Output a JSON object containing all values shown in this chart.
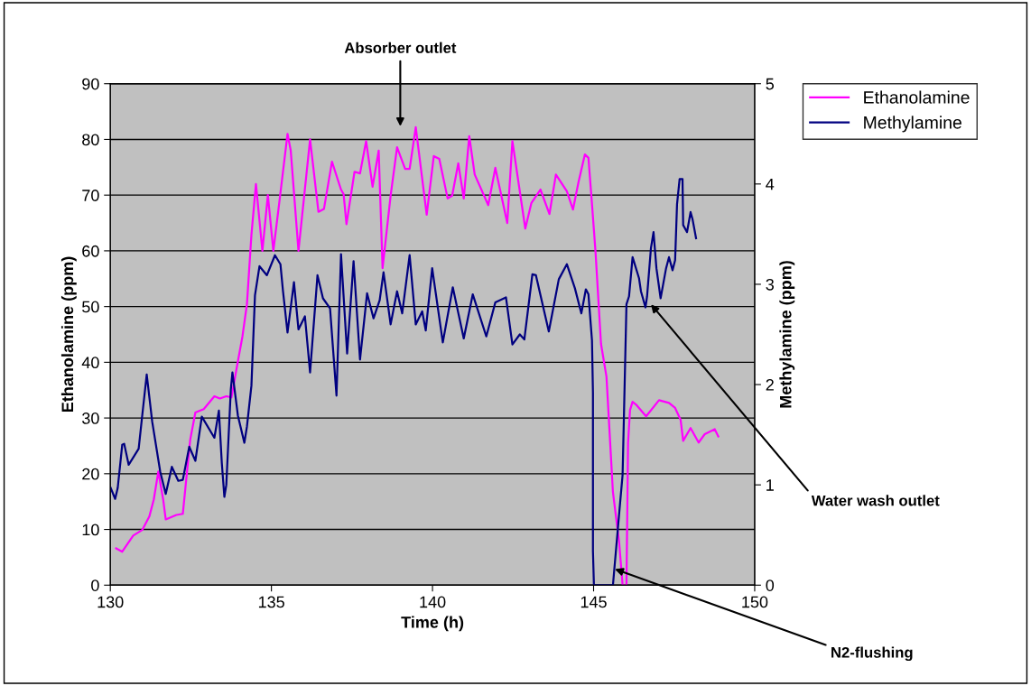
{
  "chart_data": {
    "type": "line",
    "xlabel": "Time (h)",
    "ylabel": "Ethanolamine (ppm)",
    "y2label": "Methylamine (ppm)",
    "xlim": [
      130,
      150
    ],
    "xticks": [
      130,
      135,
      140,
      145,
      150
    ],
    "ylim": [
      0,
      90
    ],
    "yticks": [
      0,
      10,
      20,
      30,
      40,
      50,
      60,
      70,
      80,
      90
    ],
    "y2lim": [
      0,
      5
    ],
    "y2ticks": [
      0,
      1,
      2,
      3,
      4,
      5
    ],
    "grid": "y",
    "legend": "top right",
    "marker": "none",
    "line_style": "solid",
    "annotations": [
      "Absorber outlet",
      {
        "text": "Water wash outlet",
        "x": 146.78,
        "y": 50.4
      },
      {
        "text": "N2-flushing",
        "x": 145.66,
        "y": 2.9
      }
    ],
    "series": [
      {
        "name": "Ethanolamine",
        "color": "#ff00ff",
        "x": [
          130.18,
          130.37,
          130.71,
          130.99,
          131.21,
          131.35,
          131.49,
          131.64,
          131.72,
          132.05,
          132.25,
          132.48,
          132.64,
          132.9,
          133.23,
          133.4,
          133.6,
          133.76,
          133.96,
          134.1,
          134.24,
          134.38,
          134.52,
          134.72,
          134.89,
          135.06,
          135.23,
          135.5,
          135.6,
          135.84,
          136.2,
          136.46,
          136.63,
          136.88,
          137.16,
          137.24,
          137.33,
          137.58,
          137.75,
          137.94,
          138.14,
          138.33,
          138.45,
          138.7,
          138.9,
          139.15,
          139.29,
          139.48,
          139.82,
          140.04,
          140.21,
          140.47,
          140.61,
          140.8,
          140.97,
          141.14,
          141.31,
          141.73,
          141.95,
          142.32,
          142.48,
          142.88,
          143.07,
          143.35,
          143.63,
          143.83,
          144.17,
          144.36,
          144.53,
          144.73,
          144.84,
          144.95,
          145.06,
          145.23,
          145.4,
          145.6,
          145.79,
          145.9,
          146.02,
          146.07,
          146.13,
          146.21,
          146.32,
          146.63,
          147.03,
          147.34,
          147.53,
          147.7,
          147.78,
          148.01,
          148.26,
          148.45,
          148.76,
          148.87
        ],
        "values": [
          6.6,
          6.0,
          8.9,
          9.9,
          12.3,
          15.4,
          20.4,
          15.4,
          11.8,
          12.6,
          12.8,
          26.1,
          31.0,
          31.6,
          33.9,
          33.5,
          33.9,
          33.7,
          40.2,
          44.6,
          50.4,
          62.9,
          72,
          60,
          70,
          60,
          68,
          81,
          78,
          60,
          80,
          67,
          67.5,
          76,
          71,
          70.2,
          64.8,
          74.2,
          73.9,
          79.7,
          71.5,
          78.0,
          56.9,
          69.9,
          78.6,
          74.7,
          74.7,
          82.2,
          66.5,
          77.0,
          76.5,
          69.4,
          69.9,
          75.7,
          69.4,
          80.6,
          73.7,
          68.2,
          74.9,
          65.0,
          79.7,
          64.0,
          68.6,
          71.0,
          66.6,
          73.7,
          70.7,
          67.4,
          72.3,
          77.3,
          76.7,
          68.4,
          59.8,
          43.3,
          37.4,
          16.7,
          7.9,
          0,
          0,
          25.6,
          31.4,
          32.9,
          32.4,
          30.3,
          33.2,
          32.7,
          31.8,
          29.7,
          25.9,
          28.2,
          25.6,
          27.1,
          28.0,
          26.7
        ]
      },
      {
        "name": "Methylamine",
        "color": "#000080",
        "axis": "y2",
        "x": [
          130.01,
          130.15,
          130.23,
          130.37,
          130.43,
          130.57,
          130.88,
          130.99,
          131.13,
          131.3,
          131.55,
          131.72,
          131.91,
          132.11,
          132.25,
          132.45,
          132.64,
          132.84,
          133.23,
          133.37,
          133.46,
          133.54,
          133.6,
          133.74,
          133.79,
          133.96,
          134.16,
          134.24,
          134.38,
          134.49,
          134.63,
          134.86,
          135.11,
          135.28,
          135.36,
          135.5,
          135.7,
          135.84,
          136.04,
          136.2,
          136.43,
          136.6,
          136.82,
          137.02,
          137.16,
          137.35,
          137.55,
          137.75,
          137.97,
          138.17,
          138.36,
          138.48,
          138.7,
          138.9,
          139.06,
          139.29,
          139.48,
          139.68,
          139.79,
          139.99,
          140.32,
          140.63,
          140.97,
          141.25,
          141.67,
          141.95,
          142.28,
          142.48,
          142.71,
          142.85,
          143.1,
          143.21,
          143.61,
          143.92,
          144.17,
          144.42,
          144.62,
          144.76,
          144.84,
          144.95,
          144.98,
          144.98,
          145.01,
          145.6,
          145.79,
          145.9,
          146.02,
          146.1,
          146.21,
          146.41,
          146.47,
          146.61,
          146.66,
          146.78,
          146.86,
          146.95,
          147.08,
          147.25,
          147.34,
          147.45,
          147.53,
          147.59,
          147.67,
          147.76,
          147.78,
          147.9,
          148.01,
          148.07,
          148.18
        ],
        "values": [
          0.97,
          0.86,
          0.97,
          1.4,
          1.41,
          1.2,
          1.36,
          1.69,
          2.1,
          1.63,
          1.13,
          0.91,
          1.18,
          1.04,
          1.05,
          1.38,
          1.24,
          1.68,
          1.47,
          1.74,
          1.22,
          0.88,
          1.0,
          1.95,
          2.12,
          1.69,
          1.42,
          1.58,
          1.99,
          2.89,
          3.18,
          3.09,
          3.29,
          3.2,
          2.93,
          2.52,
          3.02,
          2.55,
          2.68,
          2.12,
          3.09,
          2.86,
          2.76,
          1.89,
          3.3,
          2.31,
          3.23,
          2.25,
          2.91,
          2.66,
          2.84,
          3.12,
          2.6,
          2.93,
          2.71,
          3.29,
          2.6,
          2.73,
          2.54,
          3.16,
          2.42,
          2.97,
          2.46,
          2.9,
          2.48,
          2.82,
          2.87,
          2.4,
          2.5,
          2.45,
          3.1,
          3.09,
          2.53,
          3.05,
          3.2,
          2.96,
          2.71,
          2.95,
          2.9,
          2.44,
          1.92,
          0.34,
          0,
          0,
          0.7,
          1.1,
          2.8,
          2.88,
          3.27,
          3.06,
          2.93,
          2.77,
          2.88,
          3.36,
          3.52,
          3.16,
          2.86,
          3.16,
          3.27,
          3.14,
          3.24,
          3.8,
          4.05,
          4.05,
          3.59,
          3.52,
          3.72,
          3.65,
          3.46
        ]
      }
    ]
  }
}
